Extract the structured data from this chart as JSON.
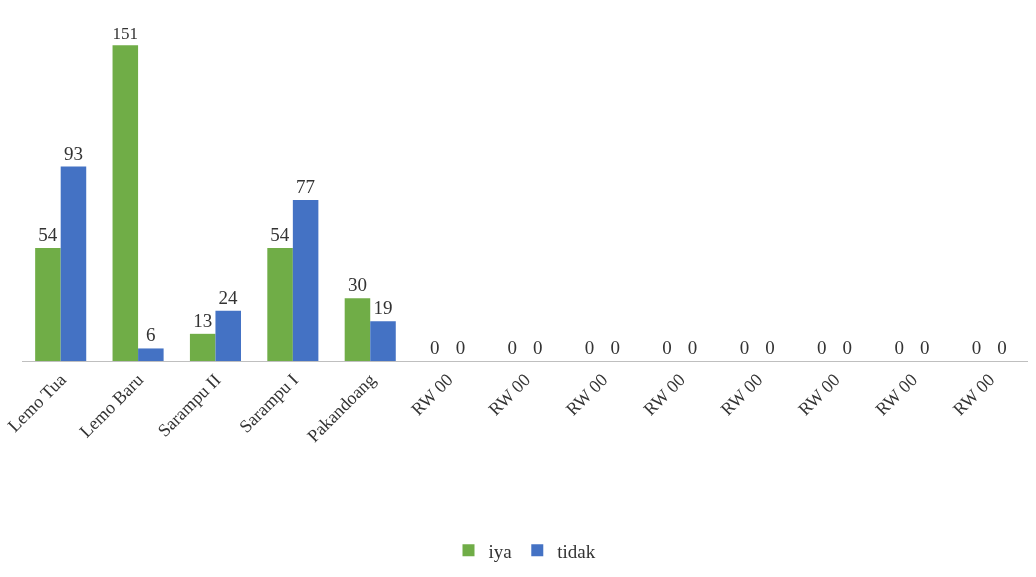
{
  "chart_data": {
    "type": "bar",
    "categories": [
      "Lemo Tua",
      "Lemo Baru",
      "Sarampu II",
      "Sarampu I",
      "Pakandoang",
      "RW 00",
      "RW 00",
      "RW 00",
      "RW 00",
      "RW 00",
      "RW 00",
      "RW 00",
      "RW 00"
    ],
    "series": [
      {
        "name": "iya",
        "color": "#70ad47",
        "values": [
          54,
          151,
          13,
          54,
          30,
          0,
          0,
          0,
          0,
          0,
          0,
          0,
          0
        ]
      },
      {
        "name": "tidak",
        "color": "#4472c4",
        "values": [
          93,
          6,
          24,
          77,
          19,
          0,
          0,
          0,
          0,
          0,
          0,
          0,
          0
        ]
      }
    ],
    "data_labels": true,
    "legend": "bottom"
  }
}
